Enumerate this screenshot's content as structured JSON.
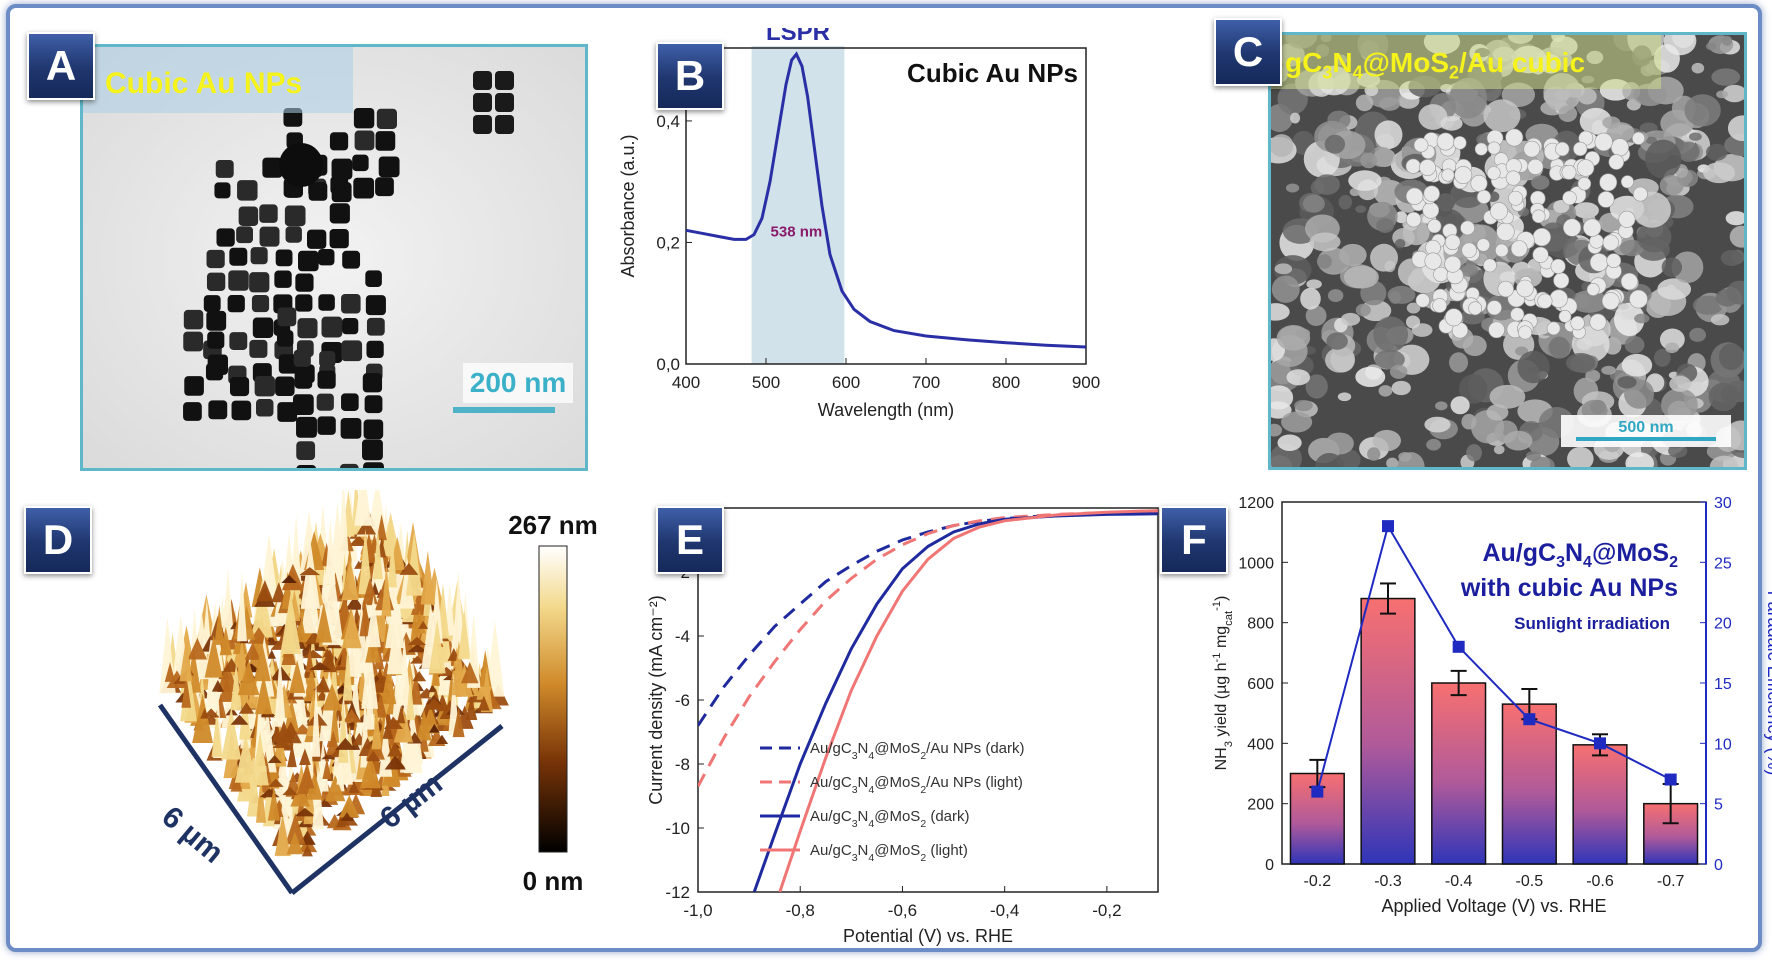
{
  "panels": {
    "A": {
      "label": "A",
      "title": "Cubic Au NPs",
      "scale_text": "200 nm",
      "border_color": "#5fb7c9"
    },
    "B": {
      "label": "B"
    },
    "C": {
      "label": "C",
      "title_parts": [
        "gC",
        "3",
        "N",
        "4",
        "@MoS",
        "2",
        "/Au cubic"
      ],
      "scale_text": "500 nm"
    },
    "D": {
      "label": "D",
      "scale_max": "267 nm",
      "scale_min": "0 nm",
      "axis_x": "6 µm",
      "axis_y": "6 µm"
    },
    "E": {
      "label": "E"
    },
    "F": {
      "label": "F",
      "overlay_title": "Au/gC3N4@MoS2",
      "overlay_subtitle": "with cubic Au NPs",
      "overlay_note": "Sunlight irradiation"
    }
  },
  "chart_data": [
    {
      "id": "B",
      "type": "line",
      "title": "Cubic Au NPs",
      "xlabel": "Wavelength (nm)",
      "ylabel": "Absorbance (a.u.)",
      "xlim": [
        400,
        900
      ],
      "ylim": [
        0.0,
        0.52
      ],
      "xticks": [
        400,
        500,
        600,
        700,
        800,
        900
      ],
      "yticks": [
        0.0,
        0.2,
        0.4
      ],
      "ytick_labels": [
        "0,0",
        "0,2",
        "0,4"
      ],
      "shaded_region": {
        "x": [
          482,
          598
        ],
        "label": "LSPR",
        "color": "#c9dde6"
      },
      "annotation": {
        "text": "538 nm",
        "x": 538,
        "y": 0.21,
        "color": "#8a1a6a"
      },
      "series": [
        {
          "color": "#2a2fa6",
          "x": [
            400,
            420,
            440,
            460,
            475,
            485,
            495,
            505,
            515,
            525,
            532,
            538,
            545,
            552,
            560,
            570,
            580,
            595,
            610,
            630,
            660,
            700,
            750,
            800,
            850,
            900
          ],
          "y": [
            0.22,
            0.215,
            0.21,
            0.205,
            0.205,
            0.213,
            0.24,
            0.3,
            0.38,
            0.46,
            0.5,
            0.51,
            0.49,
            0.44,
            0.36,
            0.26,
            0.18,
            0.12,
            0.09,
            0.07,
            0.055,
            0.046,
            0.04,
            0.035,
            0.031,
            0.028
          ]
        }
      ]
    },
    {
      "id": "E",
      "type": "line",
      "xlabel": "Potential (V) vs. RHE",
      "ylabel": "Current density (mA cm⁻²)",
      "xlim": [
        -1.0,
        -0.1
      ],
      "ylim": [
        -12,
        0
      ],
      "xticks": [
        -1.0,
        -0.8,
        -0.6,
        -0.4,
        -0.2
      ],
      "xtick_labels": [
        "-1,0",
        "-0,8",
        "-0,6",
        "-0,4",
        "-0,2"
      ],
      "yticks": [
        -12,
        -10,
        -8,
        -6,
        -4,
        -2
      ],
      "legend_position": "bottom-right",
      "series": [
        {
          "name_parts": [
            "Au/gC",
            "3",
            "N",
            "4",
            "@MoS",
            "2",
            "/Au NPs (dark)"
          ],
          "color": "#1f2a9e",
          "dash": "14,9",
          "x": [
            -1.0,
            -0.95,
            -0.9,
            -0.85,
            -0.8,
            -0.75,
            -0.7,
            -0.65,
            -0.6,
            -0.55,
            -0.5,
            -0.45,
            -0.4,
            -0.3,
            -0.2,
            -0.1
          ],
          "y": [
            -6.8,
            -5.6,
            -4.6,
            -3.7,
            -3.0,
            -2.3,
            -1.8,
            -1.35,
            -1.0,
            -0.75,
            -0.55,
            -0.42,
            -0.33,
            -0.22,
            -0.16,
            -0.12
          ]
        },
        {
          "name_parts": [
            "Au/gC",
            "3",
            "N",
            "4",
            "@MoS",
            "2",
            "/Au NPs (light)"
          ],
          "color": "#f07575",
          "dash": "14,9",
          "x": [
            -1.0,
            -0.95,
            -0.9,
            -0.85,
            -0.8,
            -0.75,
            -0.7,
            -0.65,
            -0.6,
            -0.55,
            -0.5,
            -0.45,
            -0.4,
            -0.3,
            -0.2,
            -0.1
          ],
          "y": [
            -8.7,
            -7.2,
            -5.9,
            -4.8,
            -3.8,
            -2.9,
            -2.2,
            -1.6,
            -1.15,
            -0.8,
            -0.55,
            -0.4,
            -0.3,
            -0.2,
            -0.14,
            -0.1
          ]
        },
        {
          "name_parts": [
            "Au/gC",
            "3",
            "N",
            "4",
            "@MoS",
            "2",
            " (dark)"
          ],
          "color": "#1f2a9e",
          "dash": "",
          "x": [
            -0.89,
            -0.85,
            -0.8,
            -0.75,
            -0.7,
            -0.65,
            -0.6,
            -0.55,
            -0.5,
            -0.45,
            -0.4,
            -0.3,
            -0.2,
            -0.1
          ],
          "y": [
            -12.0,
            -10.2,
            -8.0,
            -6.1,
            -4.4,
            -3.0,
            -1.9,
            -1.2,
            -0.75,
            -0.5,
            -0.35,
            -0.25,
            -0.2,
            -0.18
          ]
        },
        {
          "name_parts": [
            "Au/gC",
            "3",
            "N",
            "4",
            "@MoS",
            "2",
            " (light)"
          ],
          "color": "#f07575",
          "dash": "",
          "x": [
            -0.84,
            -0.8,
            -0.75,
            -0.7,
            -0.65,
            -0.6,
            -0.55,
            -0.5,
            -0.45,
            -0.4,
            -0.3,
            -0.2,
            -0.1
          ],
          "y": [
            -12.0,
            -10.1,
            -7.8,
            -5.7,
            -4.0,
            -2.6,
            -1.6,
            -0.95,
            -0.6,
            -0.4,
            -0.22,
            -0.13,
            -0.08
          ]
        }
      ]
    },
    {
      "id": "F",
      "type": "bar",
      "xlabel": "Applied Voltage (V) vs. RHE",
      "ylabel": "NH3 yield (µg h⁻¹ mg_cat⁻¹)",
      "y2label": "Faradaic Efficiency (%)",
      "categories": [
        "-0.2",
        "-0.3",
        "-0.4",
        "-0.5",
        "-0.6",
        "-0.7"
      ],
      "ylim": [
        0,
        1200
      ],
      "yticks": [
        0,
        200,
        400,
        600,
        800,
        1000,
        1200
      ],
      "y2lim": [
        0,
        30
      ],
      "y2ticks": [
        0,
        5,
        10,
        15,
        20,
        25,
        30
      ],
      "bars": {
        "values": [
          300,
          880,
          600,
          530,
          395,
          200
        ],
        "errors": [
          45,
          50,
          40,
          50,
          35,
          65
        ],
        "color_top": "#f77070",
        "color_bottom": "#2f35b8"
      },
      "line": {
        "values": [
          6,
          28,
          18,
          12,
          10,
          7
        ],
        "color": "#1f2ac0"
      }
    }
  ]
}
